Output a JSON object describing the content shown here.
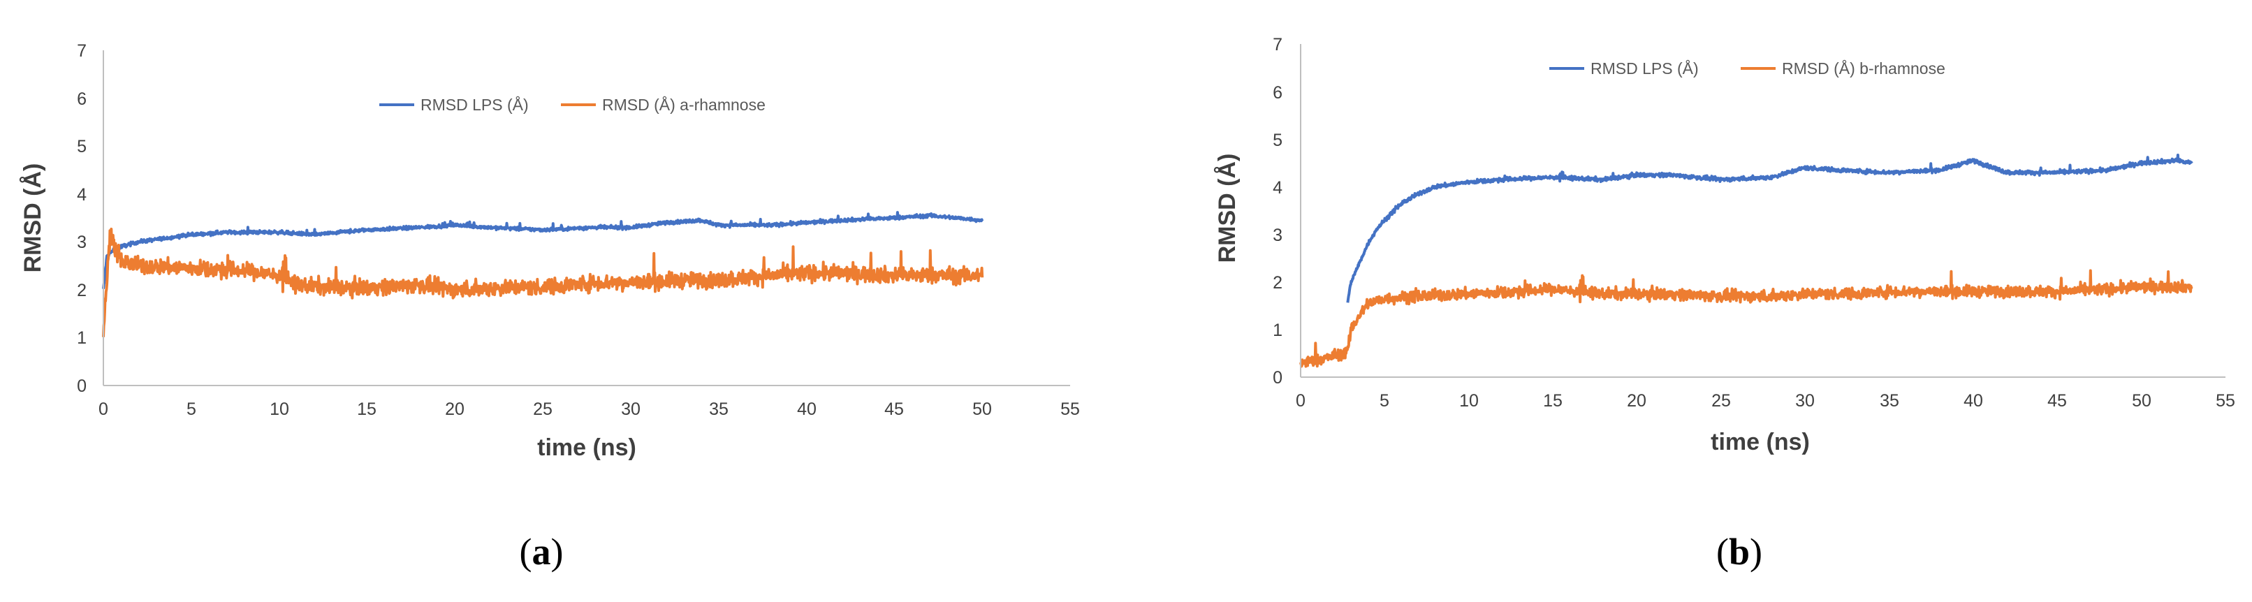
{
  "chart_data": [
    {
      "type": "line",
      "panel_label": "a",
      "xlabel": "time (ns)",
      "ylabel": "RMSD (Å)",
      "xlim": [
        0,
        55
      ],
      "ylim": [
        0,
        7
      ],
      "xticks": [
        "0",
        "5",
        "10",
        "15",
        "20",
        "25",
        "30",
        "35",
        "40",
        "45",
        "50",
        "55"
      ],
      "yticks": [
        "0",
        "1",
        "2",
        "3",
        "4",
        "5",
        "6",
        "7"
      ],
      "grid": false,
      "legend_position": "top-center",
      "series": [
        {
          "name": "RMSD LPS (Å)",
          "color": "#4472c4",
          "noise": 0.06,
          "x": [
            0,
            0.2,
            0.5,
            1,
            2,
            3,
            5,
            7,
            10,
            12,
            15,
            18,
            20,
            22,
            25,
            28,
            30,
            32,
            34,
            35,
            38,
            40,
            42,
            45,
            47,
            50
          ],
          "y": [
            2.0,
            2.7,
            2.8,
            2.9,
            3.0,
            3.05,
            3.15,
            3.2,
            3.2,
            3.15,
            3.25,
            3.3,
            3.35,
            3.3,
            3.25,
            3.3,
            3.3,
            3.4,
            3.45,
            3.35,
            3.35,
            3.4,
            3.45,
            3.5,
            3.55,
            3.45
          ]
        },
        {
          "name": "RMSD (Å) a-rhamnose",
          "color": "#ed7d31",
          "noise": 0.28,
          "x": [
            0,
            0.2,
            0.4,
            0.6,
            1,
            2,
            5,
            8,
            10,
            11,
            13,
            15,
            18,
            20,
            23,
            25,
            28,
            30,
            33,
            35,
            38,
            40,
            42,
            45,
            48,
            50
          ],
          "y": [
            1.1,
            2.2,
            3.3,
            2.9,
            2.6,
            2.5,
            2.45,
            2.4,
            2.3,
            2.1,
            2.05,
            2.05,
            2.1,
            2.0,
            2.05,
            2.05,
            2.15,
            2.15,
            2.2,
            2.2,
            2.3,
            2.35,
            2.35,
            2.3,
            2.3,
            2.3
          ]
        }
      ]
    },
    {
      "type": "line",
      "panel_label": "b",
      "xlabel": "time (ns)",
      "ylabel": "RMSD (Å)",
      "xlim": [
        0,
        55
      ],
      "ylim": [
        0,
        7
      ],
      "xticks": [
        "0",
        "5",
        "10",
        "15",
        "20",
        "25",
        "30",
        "35",
        "40",
        "45",
        "50",
        "55"
      ],
      "yticks": [
        "0",
        "1",
        "2",
        "3",
        "4",
        "5",
        "6",
        "7"
      ],
      "grid": false,
      "legend_position": "top-center",
      "series": [
        {
          "name": "RMSD LPS (Å)",
          "color": "#4472c4",
          "noise": 0.07,
          "x": [
            2.8,
            3.0,
            3.5,
            4,
            4.5,
            5,
            6,
            7,
            8,
            10,
            12,
            15,
            18,
            20,
            22,
            25,
            28,
            30,
            32,
            35,
            38,
            40,
            42,
            45,
            48,
            50,
            52,
            53
          ],
          "y": [
            1.6,
            2.0,
            2.4,
            2.8,
            3.1,
            3.3,
            3.65,
            3.85,
            4.0,
            4.1,
            4.15,
            4.2,
            4.15,
            4.25,
            4.25,
            4.15,
            4.2,
            4.4,
            4.35,
            4.3,
            4.35,
            4.55,
            4.3,
            4.3,
            4.35,
            4.5,
            4.55,
            4.5
          ]
        },
        {
          "name": "RMSD (Å) b-rhamnose",
          "color": "#ed7d31",
          "noise": 0.2,
          "x": [
            0,
            1,
            2,
            2.8,
            3.0,
            3.5,
            4,
            5,
            7,
            10,
            13,
            15,
            18,
            20,
            22,
            25,
            28,
            30,
            33,
            35,
            38,
            40,
            43,
            45,
            48,
            50,
            53
          ],
          "y": [
            0.3,
            0.35,
            0.45,
            0.55,
            1.0,
            1.3,
            1.55,
            1.65,
            1.7,
            1.75,
            1.8,
            1.85,
            1.75,
            1.75,
            1.75,
            1.7,
            1.7,
            1.75,
            1.75,
            1.8,
            1.8,
            1.8,
            1.8,
            1.8,
            1.85,
            1.9,
            1.9
          ]
        }
      ]
    }
  ]
}
